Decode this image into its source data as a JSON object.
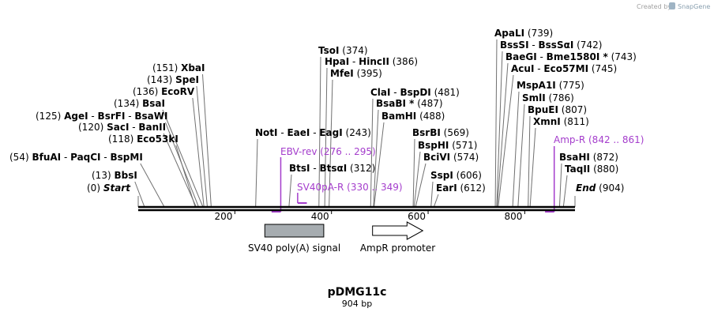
{
  "map": {
    "name": "pDMG11c",
    "length_label": "904 bp",
    "length_bp": 904,
    "credit": {
      "prefix": "Created by",
      "brand": "SnapGene"
    }
  },
  "axis": {
    "ticks": [
      200,
      400,
      600,
      800
    ]
  },
  "sites": [
    {
      "pos": 0,
      "label": "(0)",
      "names": [
        {
          "t": "Start",
          "italic": true
        }
      ],
      "num_first": true
    },
    {
      "pos": 13,
      "label": "(13)",
      "names": [
        {
          "t": "BbsI"
        }
      ],
      "num_first": true
    },
    {
      "pos": 54,
      "label": "(54)",
      "names": [
        {
          "t": "BfuAI"
        },
        {
          "t": "PaqCI"
        },
        {
          "t": "BspMI"
        }
      ],
      "num_first": true
    },
    {
      "pos": 118,
      "label": "(118)",
      "names": [
        {
          "t": "Eco53kI"
        }
      ],
      "num_first": true
    },
    {
      "pos": 120,
      "label": "(120)",
      "names": [
        {
          "t": "SacI"
        },
        {
          "t": "BanII"
        }
      ],
      "num_first": true
    },
    {
      "pos": 125,
      "label": "(125)",
      "names": [
        {
          "t": "AgeI"
        },
        {
          "t": "BsrFI"
        },
        {
          "t": "BsaWI"
        }
      ],
      "num_first": true
    },
    {
      "pos": 134,
      "label": "(134)",
      "names": [
        {
          "t": "BsaI"
        }
      ],
      "num_first": true
    },
    {
      "pos": 136,
      "label": "(136)",
      "names": [
        {
          "t": "EcoRV"
        }
      ],
      "num_first": true
    },
    {
      "pos": 143,
      "label": "(143)",
      "names": [
        {
          "t": "SpeI"
        }
      ],
      "num_first": true
    },
    {
      "pos": 151,
      "label": "(151)",
      "names": [
        {
          "t": "XbaI"
        }
      ],
      "num_first": true
    },
    {
      "pos": 243,
      "label": "(243)",
      "names": [
        {
          "t": "NotI"
        },
        {
          "t": "EaeI"
        },
        {
          "t": "EagI"
        }
      ],
      "num_first": false
    },
    {
      "pos": 312,
      "label": "(312)",
      "names": [
        {
          "t": "BtsI"
        },
        {
          "t": "BtsαI"
        }
      ],
      "num_first": false
    },
    {
      "pos": 374,
      "label": "(374)",
      "names": [
        {
          "t": "TsoI"
        }
      ],
      "num_first": false
    },
    {
      "pos": 386,
      "label": "(386)",
      "names": [
        {
          "t": "HpaI"
        },
        {
          "t": "HincII"
        }
      ],
      "num_first": false
    },
    {
      "pos": 395,
      "label": "(395)",
      "names": [
        {
          "t": "MfeI"
        }
      ],
      "num_first": false
    },
    {
      "pos": 481,
      "label": "(481)",
      "names": [
        {
          "t": "ClaI"
        },
        {
          "t": "BspDI"
        }
      ],
      "num_first": false
    },
    {
      "pos": 487,
      "label": "(487)",
      "names": [
        {
          "t": "BsaBI *"
        }
      ],
      "num_first": false
    },
    {
      "pos": 488,
      "label": "(488)",
      "names": [
        {
          "t": "BamHI"
        }
      ],
      "num_first": false
    },
    {
      "pos": 569,
      "label": "(569)",
      "names": [
        {
          "t": "BsrBI"
        }
      ],
      "num_first": false
    },
    {
      "pos": 571,
      "label": "(571)",
      "names": [
        {
          "t": "BspHI"
        }
      ],
      "num_first": false
    },
    {
      "pos": 574,
      "label": "(574)",
      "names": [
        {
          "t": "BciVI"
        }
      ],
      "num_first": false
    },
    {
      "pos": 606,
      "label": "(606)",
      "names": [
        {
          "t": "SspI"
        }
      ],
      "num_first": false
    },
    {
      "pos": 612,
      "label": "(612)",
      "names": [
        {
          "t": "EarI"
        }
      ],
      "num_first": false
    },
    {
      "pos": 739,
      "label": "(739)",
      "names": [
        {
          "t": "ApaLI"
        }
      ],
      "num_first": false
    },
    {
      "pos": 742,
      "label": "(742)",
      "names": [
        {
          "t": "BssSI"
        },
        {
          "t": "BssSαI"
        }
      ],
      "num_first": false
    },
    {
      "pos": 743,
      "label": "(743)",
      "names": [
        {
          "t": "BaeGI"
        },
        {
          "t": "Bme1580I *"
        }
      ],
      "num_first": false
    },
    {
      "pos": 745,
      "label": "(745)",
      "names": [
        {
          "t": "AcuI"
        },
        {
          "t": "Eco57MI"
        }
      ],
      "num_first": false
    },
    {
      "pos": 775,
      "label": "(775)",
      "names": [
        {
          "t": "MspA1I"
        }
      ],
      "num_first": false
    },
    {
      "pos": 786,
      "label": "(786)",
      "names": [
        {
          "t": "SmlI"
        }
      ],
      "num_first": false
    },
    {
      "pos": 807,
      "label": "(807)",
      "names": [
        {
          "t": "BpuEI"
        }
      ],
      "num_first": false
    },
    {
      "pos": 811,
      "label": "(811)",
      "names": [
        {
          "t": "XmnI"
        }
      ],
      "num_first": false
    },
    {
      "pos": 872,
      "label": "(872)",
      "names": [
        {
          "t": "BsaHI"
        }
      ],
      "num_first": false
    },
    {
      "pos": 880,
      "label": "(880)",
      "names": [
        {
          "t": "TaqII"
        }
      ],
      "num_first": false
    },
    {
      "pos": 904,
      "label": "(904)",
      "names": [
        {
          "t": "End",
          "italic": true
        }
      ],
      "num_first": false
    }
  ],
  "primers": [
    {
      "name": "EBV-rev",
      "range": "(276 .. 295)",
      "start": 276,
      "end": 295,
      "direction": "forward"
    },
    {
      "name": "SV40pA-R",
      "range": "(330 .. 349)",
      "start": 330,
      "end": 349,
      "direction": "reverse"
    },
    {
      "name": "Amp-R",
      "range": "(842 .. 861)",
      "start": 842,
      "end": 861,
      "direction": "reverse"
    }
  ],
  "features": [
    {
      "name": "SV40 poly(A) signal",
      "start": 262,
      "end": 384,
      "shape": "box",
      "color": "#a6acb0"
    },
    {
      "name": "AmpR promoter",
      "start": 485,
      "end": 589,
      "shape": "arrow",
      "color": "#ffffff"
    }
  ],
  "colors": {
    "primer": "#a43dcc",
    "backbone": "#000000",
    "leader": "#707070"
  }
}
